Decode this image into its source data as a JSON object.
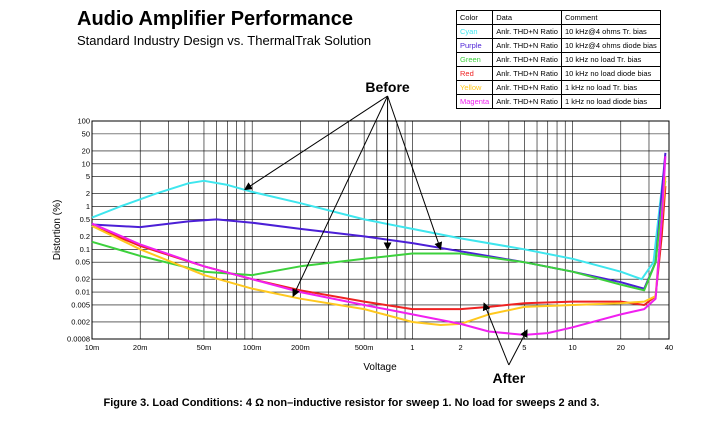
{
  "chart_data": {
    "type": "line",
    "title": "Audio Amplifier Performance",
    "subtitle": "Standard Industry Design vs. ThermalTrak Solution",
    "xlabel": "Voltage",
    "ylabel": "Distortion (%)",
    "x_scale": "log",
    "y_scale": "log",
    "xlim": [
      0.01,
      40
    ],
    "ylim": [
      0.0008,
      100
    ],
    "x_ticks": [
      {
        "v": 0.01,
        "label": "10m"
      },
      {
        "v": 0.02,
        "label": "20m"
      },
      {
        "v": 0.05,
        "label": "50m"
      },
      {
        "v": 0.1,
        "label": "100m"
      },
      {
        "v": 0.2,
        "label": "200m"
      },
      {
        "v": 0.5,
        "label": "500m"
      },
      {
        "v": 1,
        "label": "1"
      },
      {
        "v": 2,
        "label": "2"
      },
      {
        "v": 5,
        "label": "5"
      },
      {
        "v": 10,
        "label": "10"
      },
      {
        "v": 20,
        "label": "20"
      },
      {
        "v": 40,
        "label": "40"
      }
    ],
    "y_ticks": [
      {
        "v": 100,
        "label": "100"
      },
      {
        "v": 50,
        "label": "50"
      },
      {
        "v": 20,
        "label": "20"
      },
      {
        "v": 10,
        "label": "10"
      },
      {
        "v": 5,
        "label": "5"
      },
      {
        "v": 2,
        "label": "2"
      },
      {
        "v": 1,
        "label": "1"
      },
      {
        "v": 0.5,
        "label": "0.5"
      },
      {
        "v": 0.2,
        "label": "0.2"
      },
      {
        "v": 0.1,
        "label": "0.1"
      },
      {
        "v": 0.05,
        "label": "0.05"
      },
      {
        "v": 0.02,
        "label": "0.02"
      },
      {
        "v": 0.01,
        "label": "0.01"
      },
      {
        "v": 0.005,
        "label": "0.005"
      },
      {
        "v": 0.002,
        "label": "0.002"
      },
      {
        "v": 0.0008,
        "label": "0.0008"
      }
    ],
    "grid": true,
    "legend_headers": [
      "Color",
      "Data",
      "Comment"
    ],
    "legend": [
      {
        "color_name": "Cyan",
        "data": "Anlr. THD+N Ratio",
        "comment": "10 kHz@4 ohms Tr. bias",
        "color": "#3ee6ee"
      },
      {
        "color_name": "Purple",
        "data": "Anlr. THD+N Ratio",
        "comment": "10 kHz@4 ohms diode bias",
        "color": "#4b1fd6"
      },
      {
        "color_name": "Green",
        "data": "Anlr. THD+N Ratio",
        "comment": "10 kHz no load Tr. bias",
        "color": "#3cd13c"
      },
      {
        "color_name": "Red",
        "data": "Anlr. THD+N Ratio",
        "comment": "10 kHz no load diode bias",
        "color": "#ee2222"
      },
      {
        "color_name": "Yellow",
        "data": "Anlr. THD+N Ratio",
        "comment": "1 kHz no load Tr. bias",
        "color": "#ffc81e"
      },
      {
        "color_name": "Magenta",
        "data": "Anlr. THD+N Ratio",
        "comment": "1 kHz no load diode bias",
        "color": "#f020f0"
      }
    ],
    "series": [
      {
        "color": "#3ee6ee",
        "points": [
          [
            0.01,
            0.55
          ],
          [
            0.015,
            1.0
          ],
          [
            0.025,
            2.0
          ],
          [
            0.04,
            3.5
          ],
          [
            0.05,
            4.0
          ],
          [
            0.07,
            3.2
          ],
          [
            0.1,
            2.2
          ],
          [
            0.2,
            1.2
          ],
          [
            0.5,
            0.5
          ],
          [
            1,
            0.3
          ],
          [
            2,
            0.18
          ],
          [
            5,
            0.1
          ],
          [
            10,
            0.06
          ],
          [
            20,
            0.03
          ],
          [
            27,
            0.02
          ],
          [
            32,
            0.05
          ],
          [
            35,
            1.0
          ],
          [
            37,
            6.0
          ]
        ]
      },
      {
        "color": "#4b1fd6",
        "points": [
          [
            0.01,
            0.38
          ],
          [
            0.02,
            0.33
          ],
          [
            0.04,
            0.45
          ],
          [
            0.06,
            0.5
          ],
          [
            0.1,
            0.42
          ],
          [
            0.2,
            0.3
          ],
          [
            0.5,
            0.2
          ],
          [
            1,
            0.14
          ],
          [
            2,
            0.09
          ],
          [
            5,
            0.05
          ],
          [
            10,
            0.03
          ],
          [
            20,
            0.017
          ],
          [
            28,
            0.012
          ],
          [
            33,
            0.05
          ],
          [
            36,
            2.0
          ],
          [
            38,
            18.0
          ]
        ]
      },
      {
        "color": "#3cd13c",
        "points": [
          [
            0.01,
            0.15
          ],
          [
            0.02,
            0.07
          ],
          [
            0.05,
            0.03
          ],
          [
            0.1,
            0.025
          ],
          [
            0.2,
            0.04
          ],
          [
            0.5,
            0.06
          ],
          [
            1,
            0.08
          ],
          [
            2,
            0.08
          ],
          [
            5,
            0.05
          ],
          [
            10,
            0.03
          ],
          [
            20,
            0.015
          ],
          [
            28,
            0.011
          ],
          [
            33,
            0.05
          ],
          [
            36,
            1.0
          ],
          [
            38,
            4.0
          ]
        ]
      },
      {
        "color": "#ee2222",
        "points": [
          [
            0.01,
            0.35
          ],
          [
            0.02,
            0.12
          ],
          [
            0.05,
            0.04
          ],
          [
            0.1,
            0.02
          ],
          [
            0.2,
            0.011
          ],
          [
            0.5,
            0.006
          ],
          [
            1,
            0.004
          ],
          [
            2,
            0.004
          ],
          [
            3,
            0.0045
          ],
          [
            5,
            0.0055
          ],
          [
            10,
            0.006
          ],
          [
            20,
            0.006
          ],
          [
            28,
            0.005
          ],
          [
            33,
            0.008
          ],
          [
            36,
            0.2
          ],
          [
            38,
            3.0
          ]
        ]
      },
      {
        "color": "#ffc81e",
        "points": [
          [
            0.01,
            0.35
          ],
          [
            0.02,
            0.1
          ],
          [
            0.05,
            0.025
          ],
          [
            0.1,
            0.012
          ],
          [
            0.2,
            0.007
          ],
          [
            0.5,
            0.004
          ],
          [
            1,
            0.002
          ],
          [
            1.5,
            0.0017
          ],
          [
            2,
            0.0018
          ],
          [
            3,
            0.003
          ],
          [
            5,
            0.0045
          ],
          [
            10,
            0.005
          ],
          [
            20,
            0.0055
          ],
          [
            28,
            0.006
          ],
          [
            33,
            0.008
          ],
          [
            36,
            0.5
          ],
          [
            38,
            5.0
          ]
        ]
      },
      {
        "color": "#f020f0",
        "points": [
          [
            0.01,
            0.4
          ],
          [
            0.02,
            0.13
          ],
          [
            0.05,
            0.04
          ],
          [
            0.1,
            0.02
          ],
          [
            0.2,
            0.01
          ],
          [
            0.5,
            0.005
          ],
          [
            1,
            0.003
          ],
          [
            2,
            0.0018
          ],
          [
            3,
            0.0012
          ],
          [
            5,
            0.001
          ],
          [
            7,
            0.0011
          ],
          [
            10,
            0.0015
          ],
          [
            20,
            0.003
          ],
          [
            28,
            0.004
          ],
          [
            33,
            0.007
          ],
          [
            36,
            0.5
          ],
          [
            38,
            15.0
          ]
        ]
      }
    ],
    "annotations": [
      {
        "text": "Before",
        "x_text": 0.7,
        "y_text": 100,
        "targets": [
          [
            0.09,
            2.5
          ],
          [
            0.18,
            0.008
          ],
          [
            0.7,
            0.1
          ],
          [
            1.5,
            0.1
          ]
        ]
      },
      {
        "text": "After",
        "x_text": 4,
        "y_text": 0.00035,
        "targets": [
          [
            2.8,
            0.0055
          ],
          [
            5.2,
            0.0013
          ]
        ]
      }
    ]
  },
  "caption": "Figure 3. Load Conditions: 4 Ω non–inductive resistor for sweep 1. No load for sweeps 2 and 3."
}
